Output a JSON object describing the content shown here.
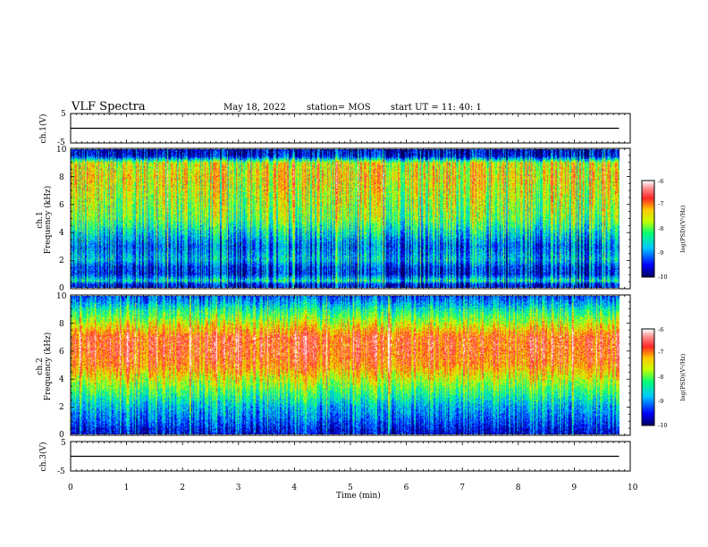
{
  "header": {
    "title": "VLF Spectra",
    "date": "May 18, 2022",
    "station": "station= MOS",
    "start": "start  UT  =    11: 40: 1"
  },
  "panels": {
    "ch1_wave": {
      "ylabel": "ch.1(V)",
      "ticks": [
        "5",
        "-5"
      ]
    },
    "ch1_spec": {
      "ylabel": "ch.1\nFrequency (kHz)",
      "ticks": [
        "0",
        "2",
        "4",
        "6",
        "8",
        "10"
      ]
    },
    "ch2_spec": {
      "ylabel": "ch.2\nFrequency (kHz)",
      "ticks": [
        "0",
        "2",
        "4",
        "6",
        "8",
        "10"
      ]
    },
    "ch3_wave": {
      "ylabel": "ch.3(V)",
      "ticks": [
        "5",
        "-5"
      ]
    }
  },
  "colorbar": {
    "label": "log(PSD)(V²/Hz)",
    "ticks": [
      "-6",
      "-7",
      "-8",
      "-9",
      "-10"
    ]
  },
  "xaxis": {
    "label": "Time  (min)",
    "ticks": [
      "0",
      "1",
      "2",
      "3",
      "4",
      "5",
      "6",
      "7",
      "8",
      "9",
      "10"
    ]
  },
  "chart_data": [
    {
      "type": "line",
      "title": "",
      "ylabel": "ch.1(V)",
      "xlabel": "",
      "xlim": [
        0,
        10
      ],
      "ylim": [
        -5,
        5
      ],
      "series": [
        {
          "x": [
            0,
            9.8
          ],
          "y": [
            0,
            0
          ]
        }
      ]
    },
    {
      "type": "heatmap",
      "ylabel": "ch.1 Frequency (kHz)",
      "xlim": [
        0,
        10
      ],
      "ylim": [
        0,
        10
      ],
      "x_extent": [
        0,
        9.8
      ],
      "colorbar_range": [
        -10,
        -6
      ],
      "colorbar_label": "log(PSD)(V²/Hz)",
      "frequency_profile_log_psd": [
        {
          "f": 0.25,
          "v": -9.6
        },
        {
          "f": 0.5,
          "v": -8.5
        },
        {
          "f": 1.0,
          "v": -9.5
        },
        {
          "f": 1.5,
          "v": -9.4
        },
        {
          "f": 2.0,
          "v": -8.8
        },
        {
          "f": 3.0,
          "v": -9.2
        },
        {
          "f": 4.0,
          "v": -8.6
        },
        {
          "f": 5.0,
          "v": -8.0
        },
        {
          "f": 6.0,
          "v": -7.8
        },
        {
          "f": 7.0,
          "v": -7.6
        },
        {
          "f": 8.0,
          "v": -7.4
        },
        {
          "f": 9.0,
          "v": -7.6
        },
        {
          "f": 9.5,
          "v": -9.6
        },
        {
          "f": 10.0,
          "v": -9.8
        }
      ]
    },
    {
      "type": "heatmap",
      "ylabel": "ch.2 Frequency (kHz)",
      "xlim": [
        0,
        10
      ],
      "ylim": [
        0,
        10
      ],
      "x_extent": [
        0,
        9.8
      ],
      "colorbar_range": [
        -10,
        -6
      ],
      "colorbar_label": "log(PSD)(V²/Hz)",
      "frequency_profile_log_psd": [
        {
          "f": 0.25,
          "v": -9.6
        },
        {
          "f": 1.0,
          "v": -9.2
        },
        {
          "f": 2.0,
          "v": -8.8
        },
        {
          "f": 3.0,
          "v": -8.2
        },
        {
          "f": 4.0,
          "v": -7.6
        },
        {
          "f": 5.0,
          "v": -7.0
        },
        {
          "f": 6.0,
          "v": -6.8
        },
        {
          "f": 7.0,
          "v": -6.8
        },
        {
          "f": 8.0,
          "v": -7.6
        },
        {
          "f": 9.0,
          "v": -8.4
        },
        {
          "f": 9.5,
          "v": -8.9
        },
        {
          "f": 10.0,
          "v": -9.3
        }
      ]
    },
    {
      "type": "line",
      "title": "",
      "ylabel": "ch.3(V)",
      "xlabel": "Time  (min)",
      "xlim": [
        0,
        10
      ],
      "ylim": [
        -5,
        5
      ],
      "series": [
        {
          "x": [
            0,
            9.8
          ],
          "y": [
            0,
            0
          ]
        }
      ]
    }
  ]
}
